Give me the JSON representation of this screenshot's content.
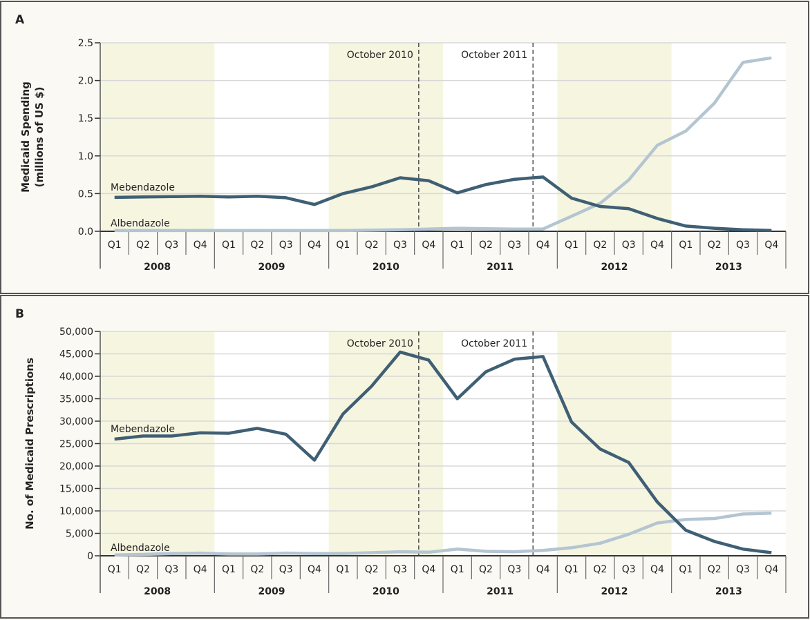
{
  "colors": {
    "mebendazole": "#3f5f74",
    "albendazole": "#b4c5d2",
    "band": "#f6f5e0",
    "panel": "#faf9f3",
    "border": "#555555"
  },
  "chart_data": [
    {
      "type": "line",
      "panel_label": "A",
      "ylabel_lines": [
        "Medicaid Spending",
        "(millions of US $)"
      ],
      "ylim": [
        0,
        2.5
      ],
      "yticks": [
        0,
        0.5,
        1,
        1.5,
        2,
        2.5
      ],
      "ytick_labels": [
        "0.0",
        "0.5",
        "1.0",
        "1.5",
        "2.0",
        "2.5"
      ],
      "quarters": [
        "Q1",
        "Q2",
        "Q3",
        "Q4"
      ],
      "years": [
        "2008",
        "2009",
        "2010",
        "2011",
        "2012",
        "2013"
      ],
      "annotations": [
        {
          "text": "October 2010",
          "quarter_index": 11.15
        },
        {
          "text": "October 2011",
          "quarter_index": 15.15
        }
      ],
      "series": [
        {
          "name": "Mebendazole",
          "values": [
            0.45,
            0.455,
            0.46,
            0.465,
            0.455,
            0.465,
            0.445,
            0.355,
            0.5,
            0.59,
            0.71,
            0.67,
            0.51,
            0.62,
            0.69,
            0.72,
            0.44,
            0.33,
            0.3,
            0.17,
            0.07,
            0.04,
            0.02,
            0.01
          ]
        },
        {
          "name": "Albendazole",
          "values": [
            0.01,
            0.01,
            0.01,
            0.01,
            0.01,
            0.01,
            0.01,
            0.01,
            0.01,
            0.015,
            0.02,
            0.03,
            0.04,
            0.035,
            0.03,
            0.03,
            0.2,
            0.37,
            0.68,
            1.14,
            1.33,
            1.7,
            2.24,
            2.3
          ]
        }
      ]
    },
    {
      "type": "line",
      "panel_label": "B",
      "ylabel_lines": [
        "No. of Medicaid Prescriptions"
      ],
      "ylim": [
        0,
        50000
      ],
      "yticks": [
        0,
        5000,
        10000,
        15000,
        20000,
        25000,
        30000,
        35000,
        40000,
        45000,
        50000
      ],
      "ytick_labels": [
        "0",
        "5,000",
        "10,000",
        "15,000",
        "20,000",
        "25,000",
        "30,000",
        "35,000",
        "40,000",
        "45,000",
        "50,000"
      ],
      "quarters": [
        "Q1",
        "Q2",
        "Q3",
        "Q4"
      ],
      "years": [
        "2008",
        "2009",
        "2010",
        "2011",
        "2012",
        "2013"
      ],
      "annotations": [
        {
          "text": "October 2010",
          "quarter_index": 11.15
        },
        {
          "text": "October 2011",
          "quarter_index": 15.15
        }
      ],
      "series": [
        {
          "name": "Mebendazole",
          "values": [
            26000,
            26700,
            26700,
            27400,
            27300,
            28400,
            27100,
            21300,
            31600,
            37800,
            45400,
            43600,
            35000,
            41000,
            43800,
            44400,
            29800,
            23800,
            20800,
            12000,
            5700,
            3200,
            1500,
            700
          ]
        },
        {
          "name": "Albendazole",
          "values": [
            200,
            300,
            500,
            600,
            400,
            400,
            600,
            500,
            500,
            700,
            900,
            800,
            1500,
            1000,
            900,
            1200,
            1800,
            2800,
            4800,
            7300,
            8100,
            8300,
            9300,
            9500
          ]
        }
      ]
    }
  ]
}
